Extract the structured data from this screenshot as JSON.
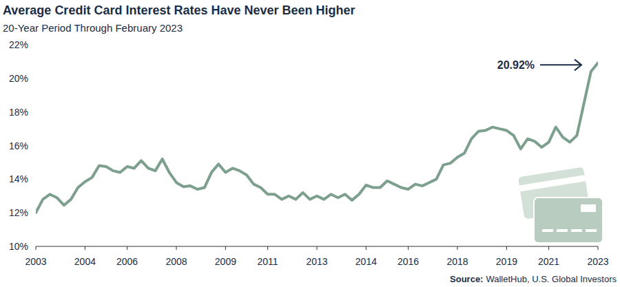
{
  "chart_data": {
    "type": "line",
    "title": "Average Credit Card Interest Rates Have Never Been Higher",
    "subtitle": "20-Year Period Through February 2023",
    "annotation": "20.92%",
    "source_label": "Source:",
    "source": "WalletHub, U.S. Global Investors",
    "color": "#7d9f8d",
    "grid": false,
    "categories": [
      "2003",
      null,
      null,
      null,
      null,
      null,
      null,
      "2004",
      null,
      null,
      null,
      null,
      null,
      "2006",
      null,
      null,
      null,
      null,
      null,
      null,
      "2008",
      null,
      null,
      null,
      null,
      null,
      null,
      "2009",
      null,
      null,
      null,
      null,
      null,
      "2011",
      null,
      null,
      null,
      null,
      null,
      null,
      "2013",
      null,
      null,
      null,
      null,
      null,
      null,
      "2014",
      null,
      null,
      null,
      null,
      null,
      "2016",
      null,
      null,
      null,
      null,
      null,
      null,
      "2018",
      null,
      null,
      null,
      null,
      null,
      null,
      "2019",
      null,
      null,
      null,
      null,
      null,
      "2021",
      null,
      null,
      null,
      null,
      null,
      null,
      "2023"
    ],
    "values": [
      12.0,
      12.8,
      13.1,
      12.9,
      12.45,
      12.8,
      13.5,
      13.85,
      14.1,
      14.8,
      14.75,
      14.5,
      14.4,
      14.75,
      14.65,
      15.1,
      14.65,
      14.5,
      15.2,
      14.4,
      13.8,
      13.55,
      13.6,
      13.4,
      13.5,
      14.4,
      14.9,
      14.4,
      14.65,
      14.5,
      14.25,
      13.7,
      13.5,
      13.1,
      13.1,
      12.8,
      13.0,
      12.8,
      13.2,
      12.8,
      13.0,
      12.8,
      13.1,
      12.9,
      13.1,
      12.75,
      13.1,
      13.65,
      13.5,
      13.5,
      13.9,
      13.7,
      13.5,
      13.4,
      13.7,
      13.6,
      13.8,
      14.0,
      14.85,
      14.95,
      15.3,
      15.55,
      16.4,
      16.85,
      16.9,
      17.1,
      17.0,
      16.9,
      16.6,
      15.8,
      16.4,
      16.25,
      15.9,
      16.2,
      17.1,
      16.5,
      16.2,
      16.6,
      18.5,
      20.4,
      20.92
    ],
    "ylim": [
      10,
      22
    ],
    "yticks": [
      {
        "value": 10,
        "label": "10%"
      },
      {
        "value": 12,
        "label": "12%"
      },
      {
        "value": 14,
        "label": "14%"
      },
      {
        "value": 16,
        "label": "16%"
      },
      {
        "value": 18,
        "label": "18%"
      },
      {
        "value": 20,
        "label": "20%"
      },
      {
        "value": 22,
        "label": "22%"
      }
    ]
  }
}
